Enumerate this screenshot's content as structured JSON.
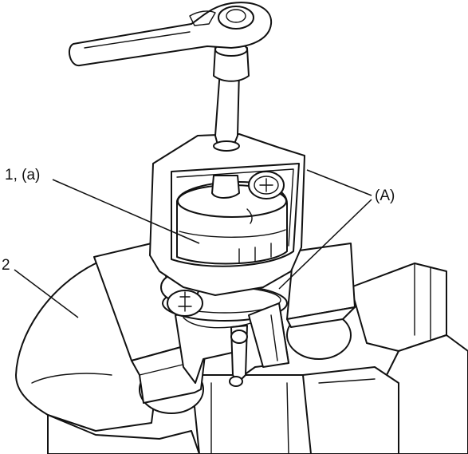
{
  "labels": {
    "part_1a": "1, (a)",
    "part_2": "2",
    "part_A": "(A)"
  }
}
